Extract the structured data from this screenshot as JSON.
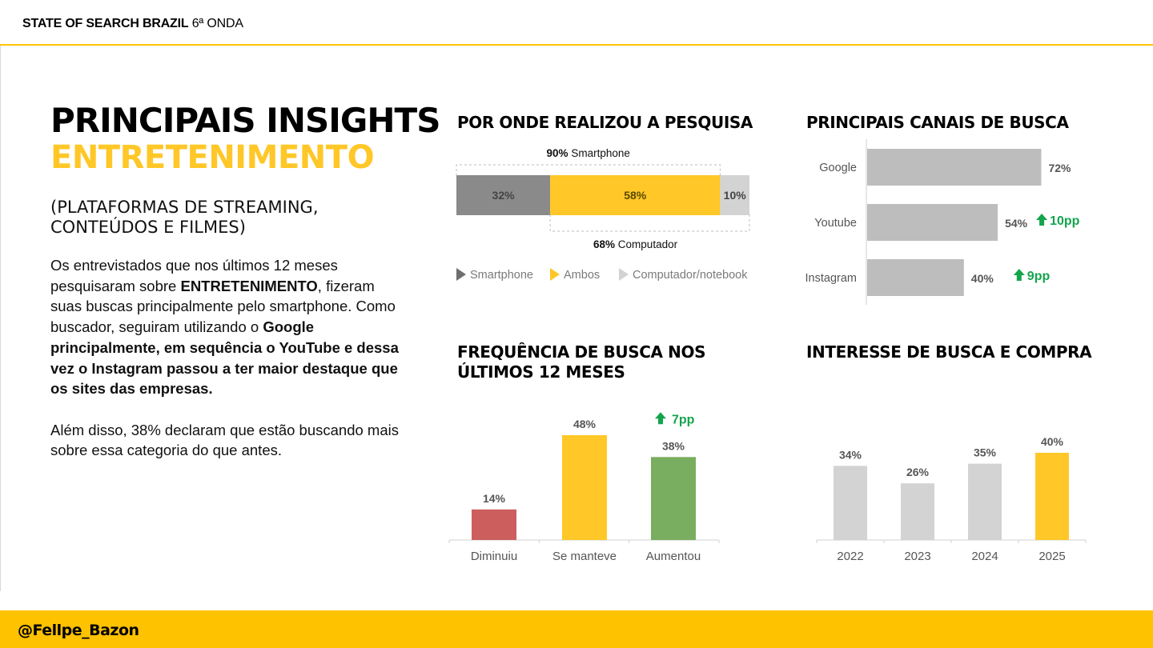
{
  "header": {
    "brand": "STATE OF SEARCH BRAZIL",
    "edition": "6ª ONDA"
  },
  "footer": {
    "handle": "@Fellpe_Bazon"
  },
  "hero": {
    "title_line1": "PRINCIPAIS INSIGHTS",
    "title_line2": "ENTRETENIMENTO",
    "subtitle_line1": "(PLATAFORMAS DE STREAMING,",
    "subtitle_line2": "CONTEÚDOS E FILMES)"
  },
  "body": {
    "p1_a": "Os entrevistados que nos últimos 12 meses pesquisaram sobre ",
    "p1_b": "ENTRETENIMENTO",
    "p1_c": ", fizeram suas buscas principalmente pelo smartphone. Como buscador, seguiram utilizando o ",
    "p1_d": "Google principalmente, em sequência o YouTube e dessa vez o Instagram passou a ter maior destaque que os sites das empresas.",
    "p2": "Além disso, 38% declaram que estão buscando mais sobre essa categoria do que antes."
  },
  "sections": {
    "device": "POR ONDE REALIZOU A PESQUISA",
    "channels": "PRINCIPAIS CANAIS DE BUSCA",
    "frequency_line1": "FREQUÊNCIA DE BUSCA NOS",
    "frequency_line2": "ÚLTIMOS 12 MESES",
    "interest": "INTERESSE DE BUSCA E COMPRA"
  },
  "colors": {
    "yellow": "#FFC727",
    "dark_gray": "#8A8A8A",
    "light_gray": "#D3D3D3",
    "mid_gray": "#BDBDBD",
    "red": "#CD5E5E",
    "green_bar": "#79AD5F",
    "green_arrow": "#14A44D"
  },
  "chart_data": [
    {
      "id": "device",
      "type": "bar",
      "orientation": "horizontal-stacked",
      "title": "POR ONDE REALIZOU A PESQUISA",
      "series": [
        {
          "name": "Smartphone",
          "value": 32,
          "label": "32%",
          "color": "#8A8A8A"
        },
        {
          "name": "Ambos",
          "value": 58,
          "label": "58%",
          "color": "#FFC727"
        },
        {
          "name": "Computador/notebook",
          "value": 10,
          "label": "10%",
          "color": "#D3D3D3"
        }
      ],
      "totals": [
        {
          "pct": "90%",
          "text": "Smartphone"
        },
        {
          "pct": "68%",
          "text": "Computador"
        }
      ],
      "legend": [
        "Smartphone",
        "Ambos",
        "Computador/notebook"
      ]
    },
    {
      "id": "channels",
      "type": "bar",
      "orientation": "horizontal",
      "title": "PRINCIPAIS CANAIS DE BUSCA",
      "categories": [
        "Google",
        "Youtube",
        "Instagram"
      ],
      "values": [
        72,
        54,
        40
      ],
      "labels": [
        "72%",
        "54%",
        "40%"
      ],
      "changes": [
        "",
        "10pp",
        "9pp"
      ],
      "xlim": [
        0,
        100
      ]
    },
    {
      "id": "frequency",
      "type": "bar",
      "title": "FREQUÊNCIA DE BUSCA NOS ÚLTIMOS 12 MESES",
      "categories": [
        "Diminuiu",
        "Se manteve",
        "Aumentou"
      ],
      "values": [
        14,
        48,
        38
      ],
      "labels": [
        "14%",
        "48%",
        "38%"
      ],
      "colors": [
        "#CD5E5E",
        "#FFC727",
        "#79AD5F"
      ],
      "changes": [
        "",
        "",
        "7pp"
      ],
      "ylim": [
        0,
        48
      ]
    },
    {
      "id": "interest",
      "type": "bar",
      "title": "INTERESSE DE BUSCA E COMPRA",
      "categories": [
        "2022",
        "2023",
        "2024",
        "2025"
      ],
      "values": [
        34,
        26,
        35,
        40
      ],
      "labels": [
        "34%",
        "26%",
        "35%",
        "40%"
      ],
      "colors": [
        "#D3D3D3",
        "#D3D3D3",
        "#D3D3D3",
        "#FFC727"
      ],
      "ylim": [
        0,
        40
      ]
    }
  ]
}
